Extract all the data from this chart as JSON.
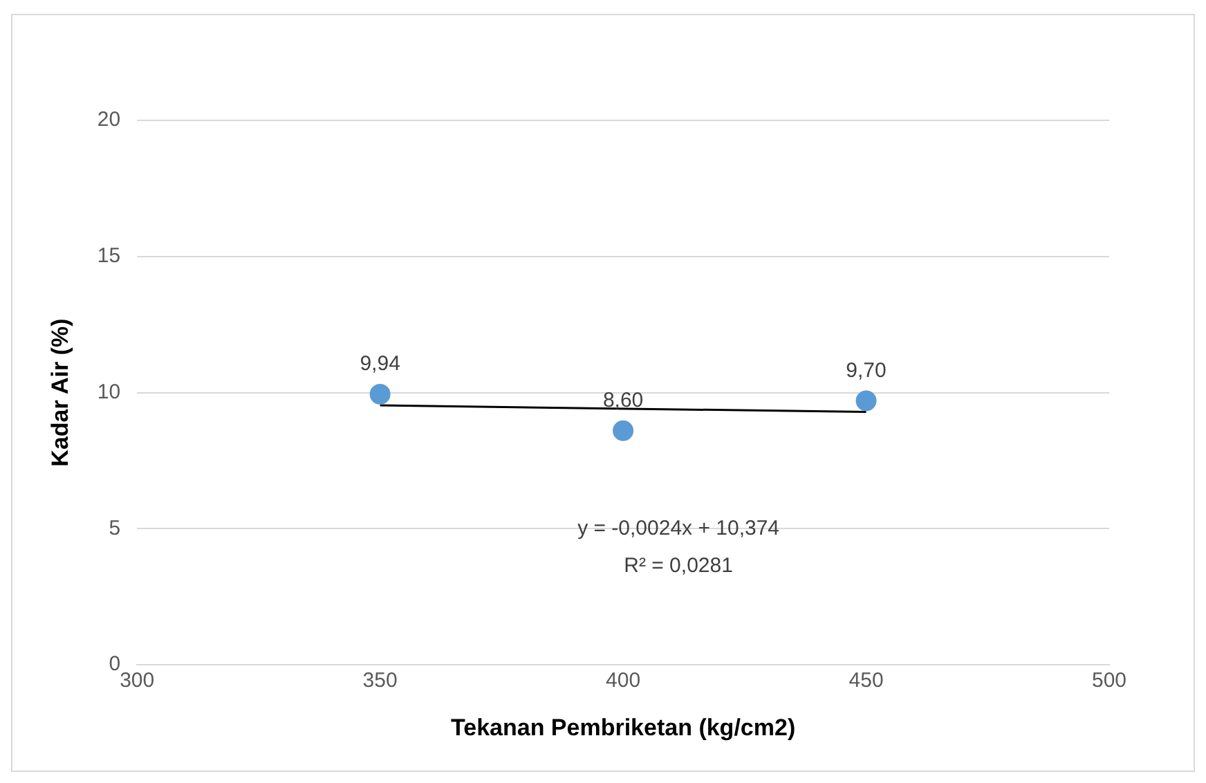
{
  "chart_data": {
    "type": "scatter",
    "xlabel": "Tekanan Pembriketan (kg/cm2)",
    "ylabel": "Kadar Air (%)",
    "xlim": [
      300,
      500
    ],
    "xticks": [
      300,
      350,
      400,
      450,
      500
    ],
    "ylim": [
      0,
      20
    ],
    "yticks": [
      0,
      5,
      10,
      15,
      20
    ],
    "grid": "y",
    "series": [
      {
        "type": "scatter",
        "color": "#5b9bd5",
        "marker": "circle",
        "x": [
          350,
          400,
          450
        ],
        "values": [
          9.94,
          8.6,
          9.7
        ],
        "value_labels": [
          "9,94",
          "8,60",
          "9,70"
        ]
      },
      {
        "type": "line",
        "color": "#000000",
        "marker": "none",
        "x": [
          350,
          450
        ],
        "values": [
          9.53,
          9.29
        ]
      }
    ],
    "annotations": [
      "y = -0,0024x + 10,374",
      "R² = 0,0281"
    ]
  }
}
